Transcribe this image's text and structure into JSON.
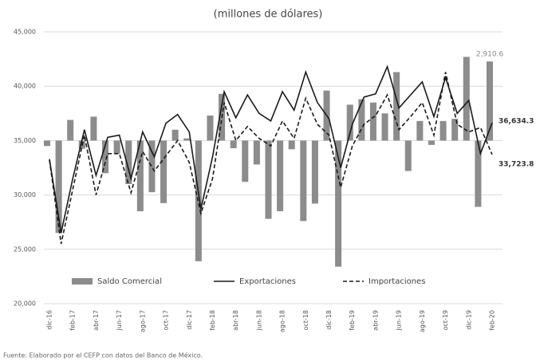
{
  "chart_data": {
    "type": "combo",
    "title": "(millones de dólares)",
    "source": "Fuente: Elaborado por el CEFP con datos del Banco de México.",
    "categories": [
      "dic-16",
      null,
      "feb-17",
      null,
      "abr-17",
      null,
      "jun-17",
      null,
      "ago-17",
      null,
      "oct-17",
      null,
      "dic-17",
      null,
      "feb-18",
      null,
      "abr-18",
      null,
      "jun-18",
      null,
      "ago-18",
      null,
      "oct-18",
      null,
      "dic-18",
      null,
      "feb-19",
      null,
      "abr-19",
      null,
      "jun-19",
      null,
      "ago-19",
      null,
      "oct-19",
      null,
      "dic-19",
      null,
      "feb-20"
    ],
    "ylim": [
      20000,
      45000
    ],
    "yticks": [
      {
        "value": 20000,
        "label": "20,000"
      },
      {
        "value": 25000,
        "label": "25,000"
      },
      {
        "value": 30000,
        "label": "30,000"
      },
      {
        "value": 35000,
        "label": "35,000"
      },
      {
        "value": 40000,
        "label": "40,000"
      },
      {
        "value": 45000,
        "label": "45,000"
      }
    ],
    "y2lim": [
      -6000,
      4000
    ],
    "grid": true,
    "legend": "bottom",
    "series": [
      {
        "name": "Saldo Comercial",
        "type": "bar",
        "axis": "y2",
        "color": "#8c8c8c",
        "values": [
          -200,
          -3400,
          760,
          -300,
          880,
          -1200,
          -480,
          -1600,
          -2600,
          -1900,
          -2300,
          400,
          80,
          -4440,
          920,
          1720,
          -280,
          -1520,
          -880,
          -2880,
          -2600,
          -320,
          -2960,
          -2320,
          1840,
          -4640,
          1320,
          1520,
          1400,
          1000,
          2520,
          -1120,
          720,
          -160,
          720,
          800,
          3080,
          -2440,
          2910.6
        ],
        "value_labels": [
          null,
          null,
          null,
          null,
          null,
          null,
          null,
          null,
          null,
          null,
          null,
          null,
          null,
          null,
          null,
          null,
          null,
          null,
          null,
          null,
          null,
          null,
          null,
          null,
          null,
          null,
          null,
          null,
          null,
          null,
          null,
          null,
          null,
          null,
          null,
          null,
          null,
          null,
          "2,910.6"
        ]
      },
      {
        "name": "Exportaciones",
        "type": "line",
        "color": "#1a1a1a",
        "dash": false,
        "values": [
          33300,
          26500,
          31500,
          36000,
          31800,
          35300,
          35500,
          31500,
          35800,
          33500,
          36600,
          37400,
          35800,
          28700,
          33500,
          39500,
          37100,
          39200,
          37500,
          36800,
          39500,
          37800,
          41300,
          38500,
          37000,
          32500,
          36500,
          39000,
          39300,
          41800,
          38000,
          39200,
          40400,
          37200,
          40800,
          37500,
          38700,
          33800,
          36634.3
        ],
        "value_labels": [
          null,
          null,
          null,
          null,
          null,
          null,
          null,
          null,
          null,
          null,
          null,
          null,
          null,
          null,
          null,
          null,
          null,
          null,
          null,
          null,
          null,
          null,
          null,
          null,
          null,
          null,
          null,
          null,
          null,
          null,
          null,
          null,
          null,
          null,
          null,
          null,
          null,
          null,
          "36,634.3"
        ]
      },
      {
        "name": "Importaciones",
        "type": "line",
        "color": "#1a1a1a",
        "dash": true,
        "values": [
          33200,
          25500,
          30500,
          35500,
          30000,
          33800,
          33800,
          30200,
          34000,
          32200,
          33600,
          35000,
          33000,
          28300,
          31500,
          38500,
          35000,
          36300,
          35200,
          34500,
          36800,
          35200,
          38900,
          36500,
          35500,
          30700,
          34500,
          36500,
          37300,
          39200,
          36000,
          37200,
          38500,
          35500,
          41300,
          36500,
          35800,
          36200,
          33723.8
        ],
        "value_labels": [
          null,
          null,
          null,
          null,
          null,
          null,
          null,
          null,
          null,
          null,
          null,
          null,
          null,
          null,
          null,
          null,
          null,
          null,
          null,
          null,
          null,
          null,
          null,
          null,
          null,
          null,
          null,
          null,
          null,
          null,
          null,
          null,
          null,
          null,
          null,
          null,
          null,
          null,
          "33,723.8"
        ]
      }
    ]
  }
}
